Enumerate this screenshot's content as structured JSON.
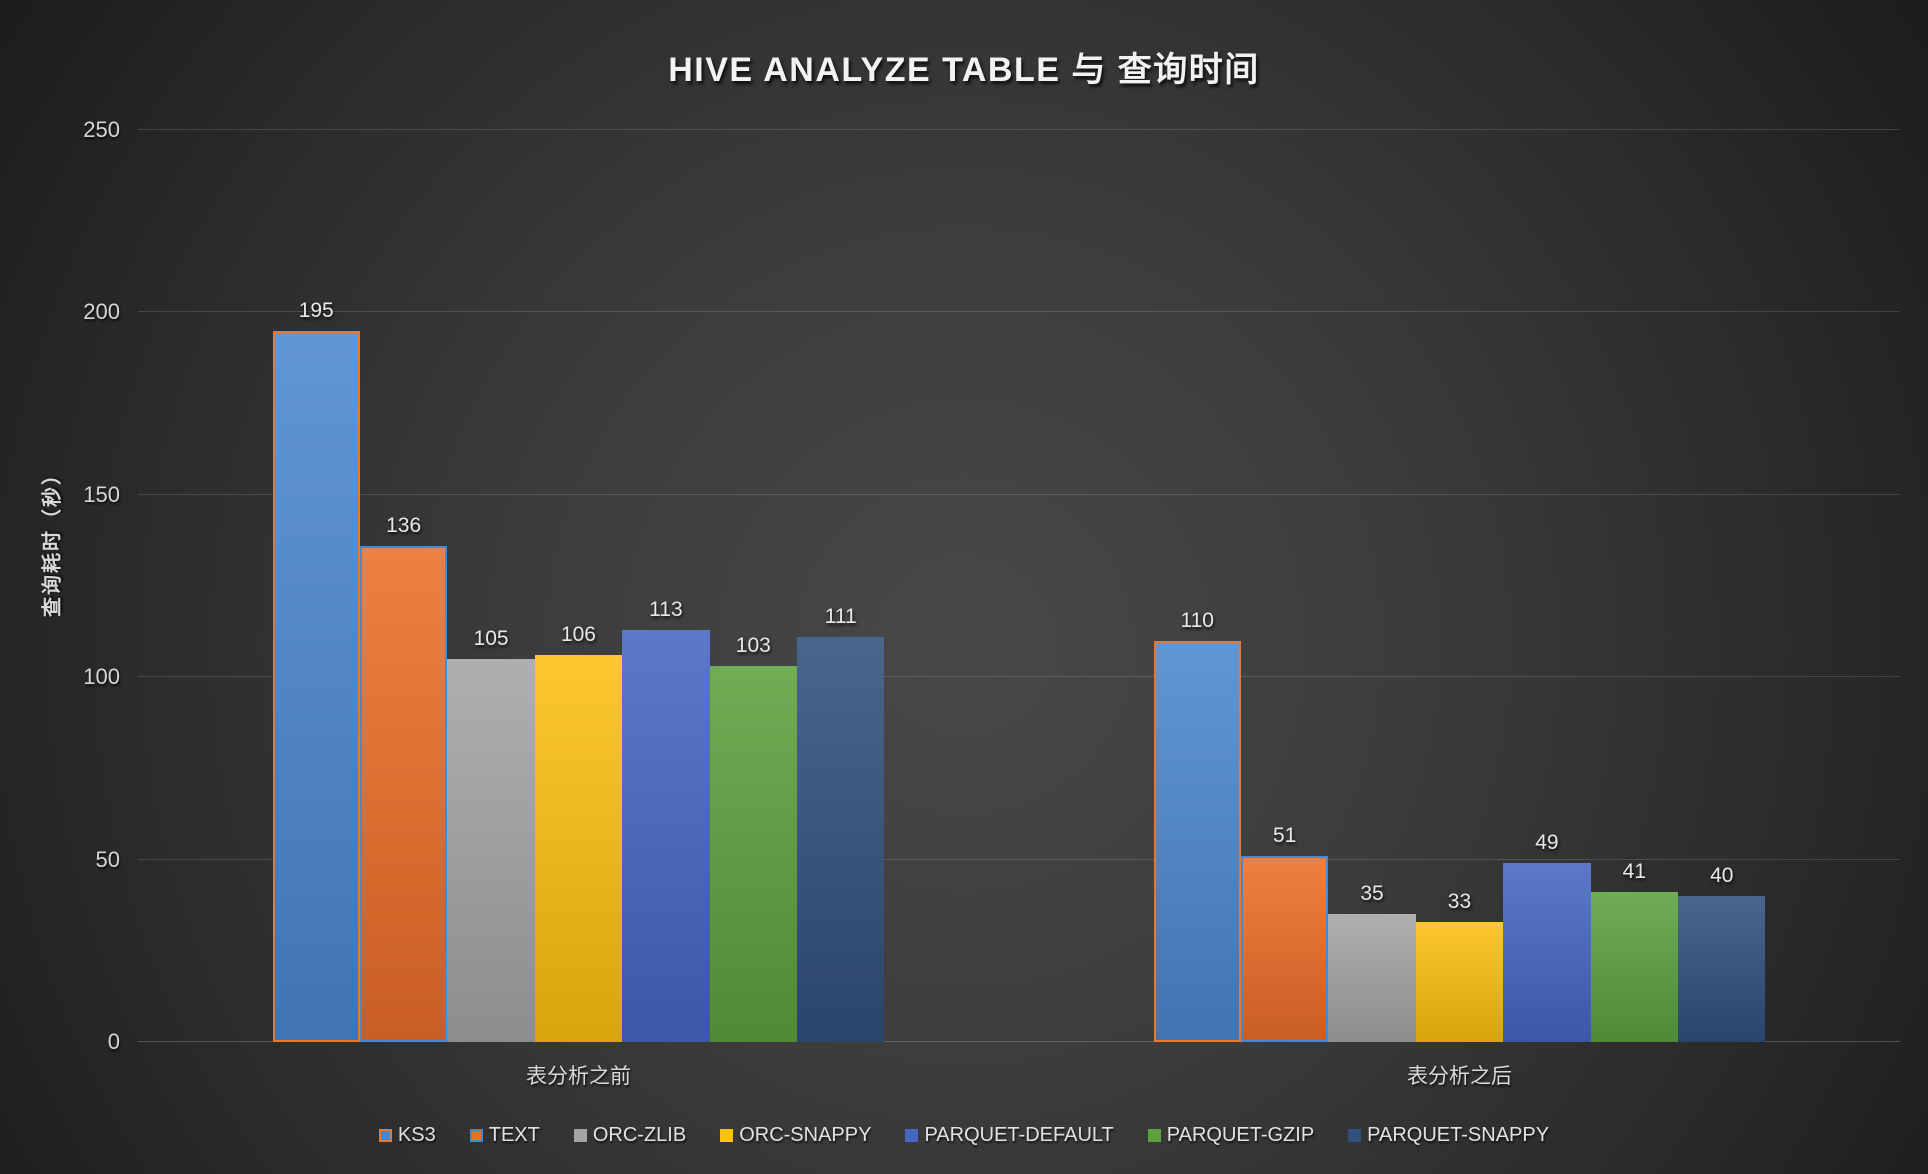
{
  "chart_data": {
    "type": "bar",
    "title": "HIVE ANALYZE TABLE 与 查询时间",
    "ylabel": "查询耗时（秒）",
    "xlabel": "",
    "categories": [
      "表分析之前",
      "表分析之后"
    ],
    "y_ticks": [
      0,
      50,
      100,
      150,
      200,
      250
    ],
    "ylim": [
      0,
      250
    ],
    "grid": "horizontal",
    "legend_position": "bottom",
    "series": [
      {
        "name": "KS3",
        "values": [
          195,
          110
        ],
        "fill": "#4b87cf",
        "border": "#e8782f"
      },
      {
        "name": "TEXT",
        "values": [
          136,
          51
        ],
        "fill": "#eb6e28",
        "border": "#4b87cf"
      },
      {
        "name": "ORC-ZLIB",
        "values": [
          105,
          35
        ],
        "fill": "#a4a4a4"
      },
      {
        "name": "ORC-SNAPPY",
        "values": [
          106,
          33
        ],
        "fill": "#fcc011"
      },
      {
        "name": "PARQUET-DEFAULT",
        "values": [
          113,
          49
        ],
        "fill": "#4566c1"
      },
      {
        "name": "PARQUET-GZIP",
        "values": [
          103,
          41
        ],
        "fill": "#5ca13d"
      },
      {
        "name": "PARQUET-SNAPPY",
        "values": [
          111,
          40
        ],
        "fill": "#31507e"
      }
    ],
    "colors": {
      "background_center": "#484848",
      "background_edge": "#1c1c1c",
      "gridline": "rgba(255,255,255,0.14)",
      "tick_text": "#d6d6d6",
      "title_text": "#f2f2f2",
      "value_label_text": "#e9e9e9"
    }
  }
}
